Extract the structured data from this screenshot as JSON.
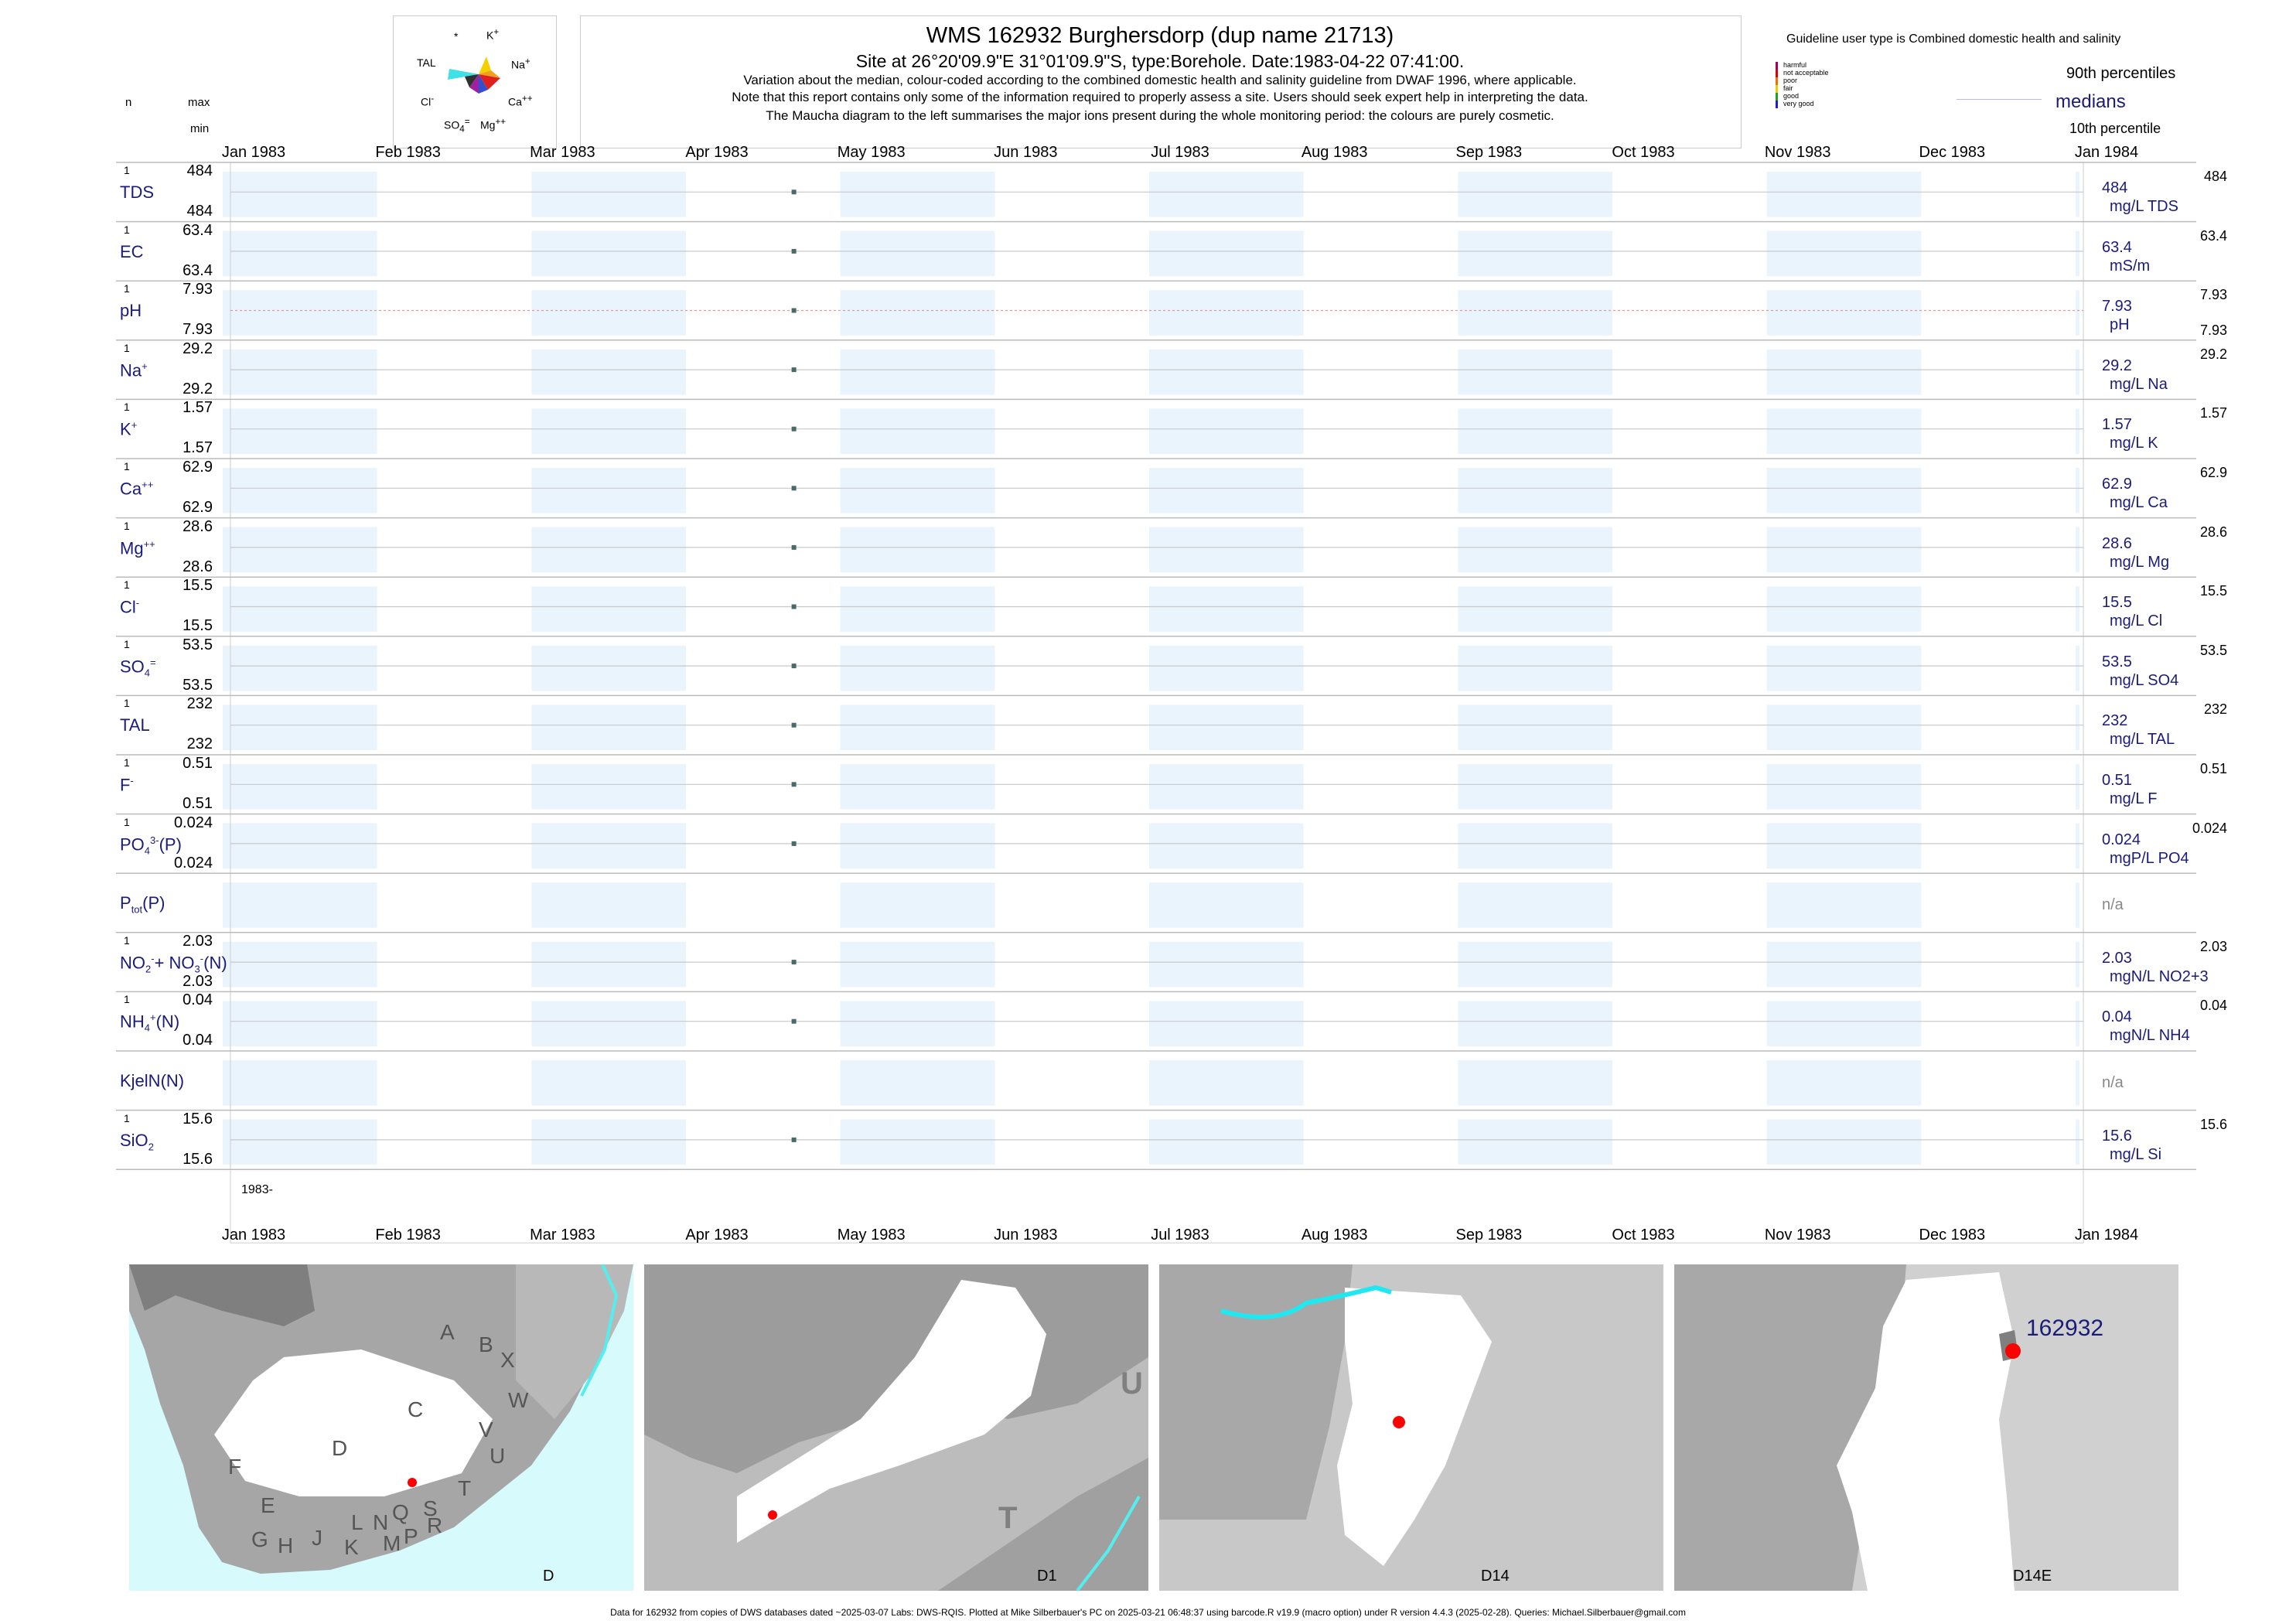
{
  "header": {
    "title": "WMS 162932  Burghersdorp (dup name 21713)",
    "site_line": "Site at 26°20'09.9\"E 31°01'09.9\"S, type:Borehole. Date:1983-04-22 07:41:00.",
    "note1": "Variation about the median,  colour-coded according to the combined domestic health and salinity guideline from DWAF 1996, where applicable.",
    "note2": "Note that this report contains only some of the information required to properly assess a site. Users should seek expert help in interpreting the data.",
    "note3": "The Maucha diagram to the left summarises the major ions present during the whole monitoring period: the colours are purely cosmetic.",
    "col_n": "n",
    "col_max": "max",
    "col_min": "min"
  },
  "maucha": {
    "labels": {
      "star": "*",
      "k": "K",
      "na": "Na",
      "ca": "Ca",
      "mg": "Mg",
      "so4": "SO",
      "cl": "Cl",
      "tal": "TAL"
    },
    "colors": {
      "tal": "#3fe0e8",
      "k": "#f5d000",
      "na": "#f0a020",
      "ca": "#e02020",
      "mg": "#3050d0",
      "so4": "#a020a0",
      "cl": "#202020"
    }
  },
  "guideline": {
    "heading": "Guideline user type is Combined domestic health and salinity",
    "levels": [
      {
        "label": "harmful",
        "color": "#a00060"
      },
      {
        "label": "not acceptable",
        "color": "#e00000"
      },
      {
        "label": "poor",
        "color": "#f07000"
      },
      {
        "label": "fair",
        "color": "#e8d000"
      },
      {
        "label": "good",
        "color": "#20a020"
      },
      {
        "label": "very good",
        "color": "#2020c0"
      }
    ],
    "p90": "90th percentiles",
    "medians": "medians",
    "p10": "10th percentile"
  },
  "chart_data": {
    "type": "scatter",
    "x_axis": {
      "months": [
        "Jan 1983",
        "Feb 1983",
        "Mar 1983",
        "Apr 1983",
        "May 1983",
        "Jun 1983",
        "Jul 1983",
        "Aug 1983",
        "Sep 1983",
        "Oct 1983",
        "Nov 1983",
        "Dec 1983",
        "Jan 1984"
      ],
      "range": [
        "1983-01-01",
        "1984-01-01"
      ],
      "year_label": "1983-"
    },
    "sample_date": "1983-04-22",
    "parameters": [
      {
        "name": "TDS",
        "n": "1",
        "max": "484",
        "min": "484",
        "value": "484",
        "unit": "mg/L TDS",
        "p90": "484",
        "p10": ""
      },
      {
        "name": "EC",
        "n": "1",
        "max": "63.4",
        "min": "63.4",
        "value": "63.4",
        "unit": "mS/m",
        "p90": "63.4",
        "p10": ""
      },
      {
        "name": "pH",
        "n": "1",
        "max": "7.93",
        "min": "7.93",
        "value": "7.93",
        "unit": "pH",
        "p90": "7.93",
        "p10": "7.93"
      },
      {
        "name": "Na",
        "sup": "+",
        "n": "1",
        "max": "29.2",
        "min": "29.2",
        "value": "29.2",
        "unit": "mg/L Na",
        "p90": "29.2",
        "p10": ""
      },
      {
        "name": "K",
        "sup": "+",
        "n": "1",
        "max": "1.57",
        "min": "1.57",
        "value": "1.57",
        "unit": "mg/L K",
        "p90": "1.57",
        "p10": ""
      },
      {
        "name": "Ca",
        "sup": "++",
        "n": "1",
        "max": "62.9",
        "min": "62.9",
        "value": "62.9",
        "unit": "mg/L Ca",
        "p90": "62.9",
        "p10": ""
      },
      {
        "name": "Mg",
        "sup": "++",
        "n": "1",
        "max": "28.6",
        "min": "28.6",
        "value": "28.6",
        "unit": "mg/L Mg",
        "p90": "28.6",
        "p10": ""
      },
      {
        "name": "Cl",
        "sup": "-",
        "n": "1",
        "max": "15.5",
        "min": "15.5",
        "value": "15.5",
        "unit": "mg/L Cl",
        "p90": "15.5",
        "p10": ""
      },
      {
        "name": "SO",
        "sub": "4",
        "sup": "=",
        "n": "1",
        "max": "53.5",
        "min": "53.5",
        "value": "53.5",
        "unit": "mg/L SO4",
        "p90": "53.5",
        "p10": ""
      },
      {
        "name": "TAL",
        "n": "1",
        "max": "232",
        "min": "232",
        "value": "232",
        "unit": "mg/L TAL",
        "p90": "232",
        "p10": ""
      },
      {
        "name": "F",
        "sup": "-",
        "n": "1",
        "max": "0.51",
        "min": "0.51",
        "value": "0.51",
        "unit": "mg/L F",
        "p90": "0.51",
        "p10": ""
      },
      {
        "name": "PO",
        "sub": "4",
        "sup": "3-",
        "suffix": "(P)",
        "n": "1",
        "max": "0.024",
        "min": "0.024",
        "value": "0.024",
        "unit": "mgP/L PO4",
        "p90": "0.024",
        "p10": ""
      },
      {
        "name": "P",
        "sub": "tot",
        "suffix": "(P)",
        "n": "",
        "max": "",
        "min": "",
        "value": "",
        "unit": "",
        "p90": "",
        "p10": "",
        "na": "n/a"
      },
      {
        "name": "NO",
        "sub": "2",
        "sup": "-",
        "suffix": "+ NO",
        "sub2": "3",
        "sup2": "-",
        "suffix2": "(N)",
        "n": "1",
        "max": "2.03",
        "min": "2.03",
        "value": "2.03",
        "unit": "mgN/L NO2+3",
        "p90": "2.03",
        "p10": ""
      },
      {
        "name": "NH",
        "sub": "4",
        "sup": "+",
        "suffix": "(N)",
        "n": "1",
        "max": "0.04",
        "min": "0.04",
        "value": "0.04",
        "unit": "mgN/L NH4",
        "p90": "0.04",
        "p10": ""
      },
      {
        "name": "KjelN(N)",
        "n": "",
        "max": "",
        "min": "",
        "value": "",
        "unit": "",
        "p90": "",
        "p10": "",
        "na": "n/a"
      },
      {
        "name": "SiO",
        "sub": "2",
        "n": "1",
        "max": "15.6",
        "min": "15.6",
        "value": "15.6",
        "unit": "mg/L Si",
        "p90": "15.6",
        "p10": ""
      }
    ]
  },
  "maps": [
    {
      "label": "D",
      "regions": [
        "A",
        "B",
        "X",
        "C",
        "W",
        "D",
        "V",
        "U",
        "F",
        "T",
        "E",
        "S",
        "Q",
        "N",
        "L",
        "R",
        "G",
        "H",
        "J",
        "K",
        "M",
        "P"
      ]
    },
    {
      "label": "D1",
      "regions": [
        "U",
        "T"
      ]
    },
    {
      "label": "D14",
      "regions": []
    },
    {
      "label": "D14E",
      "site": "162932"
    }
  ],
  "footer": "Data for 162932 from copies of DWS databases dated ~2025-03-07 Labs: DWS-RQIS. Plotted at Mike Silberbauer's PC on 2025-03-21 06:48:37 using barcode.R v19.9 (macro option) under R version 4.4.3 (2025-02-28). Queries: Michael.Silberbauer@gmail.com"
}
